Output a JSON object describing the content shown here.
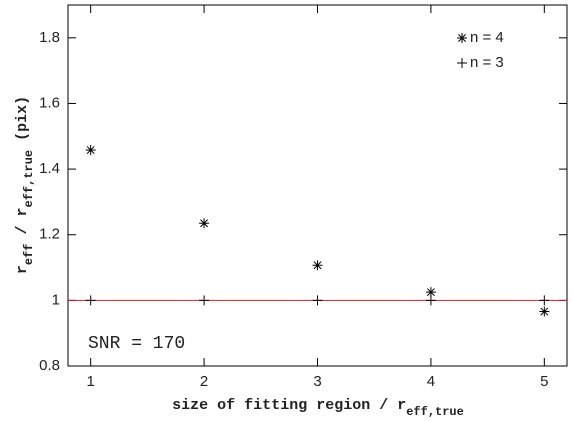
{
  "chart_data": {
    "type": "scatter",
    "xlabel_parts": [
      "size of fitting region / r",
      "eff,true"
    ],
    "ylabel_parts": [
      "r",
      "eff",
      " / r",
      "eff,true",
      " (pix)"
    ],
    "annotation": "SNR = 170",
    "xlim": [
      0.8,
      5.2
    ],
    "xticks": [
      1,
      2,
      3,
      4,
      5
    ],
    "ylim": [
      0.8,
      1.9
    ],
    "yticks": [
      0.8,
      1,
      1.2,
      1.4,
      1.6,
      1.8
    ],
    "hline": 1,
    "hline_color": "#d62020",
    "legend": "top-right",
    "series": [
      {
        "name": "n = 4",
        "marker": "asterisk",
        "color": "#000000",
        "x": [
          1,
          2,
          3,
          4,
          5
        ],
        "values": [
          1.458,
          1.235,
          1.107,
          1.025,
          0.966
        ]
      },
      {
        "name": "n = 3",
        "marker": "plus",
        "color": "#000000",
        "x": [
          1,
          2,
          3,
          4,
          5
        ],
        "values": [
          1.0,
          1.0,
          1.0,
          1.0,
          1.0
        ]
      }
    ]
  }
}
